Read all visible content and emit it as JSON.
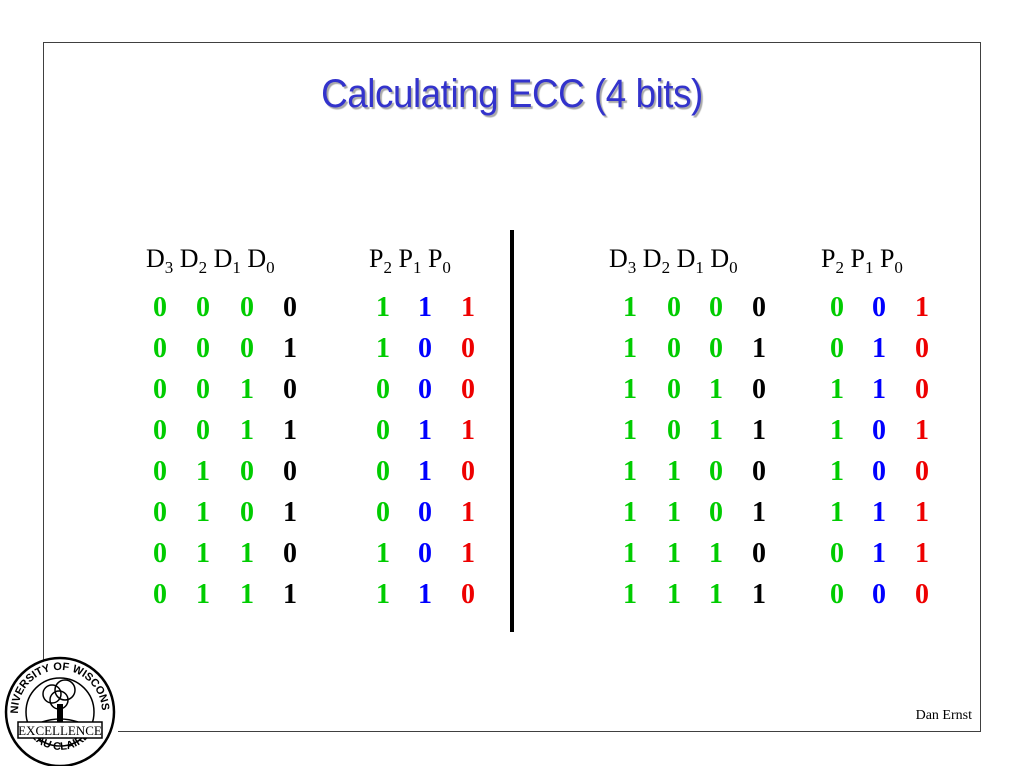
{
  "slide": {
    "title": "Calculating ECC (4 bits)",
    "author": "Dan Ernst"
  },
  "logo": {
    "name": "university-seal",
    "text_top": "UNIVERSITY OF WISCONSIN",
    "text_bottom": "EAU CLAIRE",
    "motto": "EXCELLENCE"
  },
  "headers": {
    "data": [
      {
        "base": "D",
        "sub": "3"
      },
      {
        "base": "D",
        "sub": "2"
      },
      {
        "base": "D",
        "sub": "1"
      },
      {
        "base": "D",
        "sub": "0"
      }
    ],
    "parity": [
      {
        "base": "P",
        "sub": "2"
      },
      {
        "base": "P",
        "sub": "1"
      },
      {
        "base": "P",
        "sub": "0"
      }
    ]
  },
  "colors": {
    "data_fixed": "#00cc00",
    "data_bit0": "#000000",
    "p2": "#00cc00",
    "p1": "#0000ff",
    "p0": "#ee0000",
    "title": "#3333cc"
  },
  "tables": [
    {
      "rows": [
        {
          "d": [
            "0",
            "0",
            "0",
            "0"
          ],
          "p": [
            "1",
            "1",
            "1"
          ]
        },
        {
          "d": [
            "0",
            "0",
            "0",
            "1"
          ],
          "p": [
            "1",
            "0",
            "0"
          ]
        },
        {
          "d": [
            "0",
            "0",
            "1",
            "0"
          ],
          "p": [
            "0",
            "0",
            "0"
          ]
        },
        {
          "d": [
            "0",
            "0",
            "1",
            "1"
          ],
          "p": [
            "0",
            "1",
            "1"
          ]
        },
        {
          "d": [
            "0",
            "1",
            "0",
            "0"
          ],
          "p": [
            "0",
            "1",
            "0"
          ]
        },
        {
          "d": [
            "0",
            "1",
            "0",
            "1"
          ],
          "p": [
            "0",
            "0",
            "1"
          ]
        },
        {
          "d": [
            "0",
            "1",
            "1",
            "0"
          ],
          "p": [
            "1",
            "0",
            "1"
          ]
        },
        {
          "d": [
            "0",
            "1",
            "1",
            "1"
          ],
          "p": [
            "1",
            "1",
            "0"
          ]
        }
      ]
    },
    {
      "rows": [
        {
          "d": [
            "1",
            "0",
            "0",
            "0"
          ],
          "p": [
            "0",
            "0",
            "1"
          ]
        },
        {
          "d": [
            "1",
            "0",
            "0",
            "1"
          ],
          "p": [
            "0",
            "1",
            "0"
          ]
        },
        {
          "d": [
            "1",
            "0",
            "1",
            "0"
          ],
          "p": [
            "1",
            "1",
            "0"
          ]
        },
        {
          "d": [
            "1",
            "0",
            "1",
            "1"
          ],
          "p": [
            "1",
            "0",
            "1"
          ]
        },
        {
          "d": [
            "1",
            "1",
            "0",
            "0"
          ],
          "p": [
            "1",
            "0",
            "0"
          ]
        },
        {
          "d": [
            "1",
            "1",
            "0",
            "1"
          ],
          "p": [
            "1",
            "1",
            "1"
          ]
        },
        {
          "d": [
            "1",
            "1",
            "1",
            "0"
          ],
          "p": [
            "0",
            "1",
            "1"
          ]
        },
        {
          "d": [
            "1",
            "1",
            "1",
            "1"
          ],
          "p": [
            "0",
            "0",
            "0"
          ]
        }
      ]
    }
  ]
}
